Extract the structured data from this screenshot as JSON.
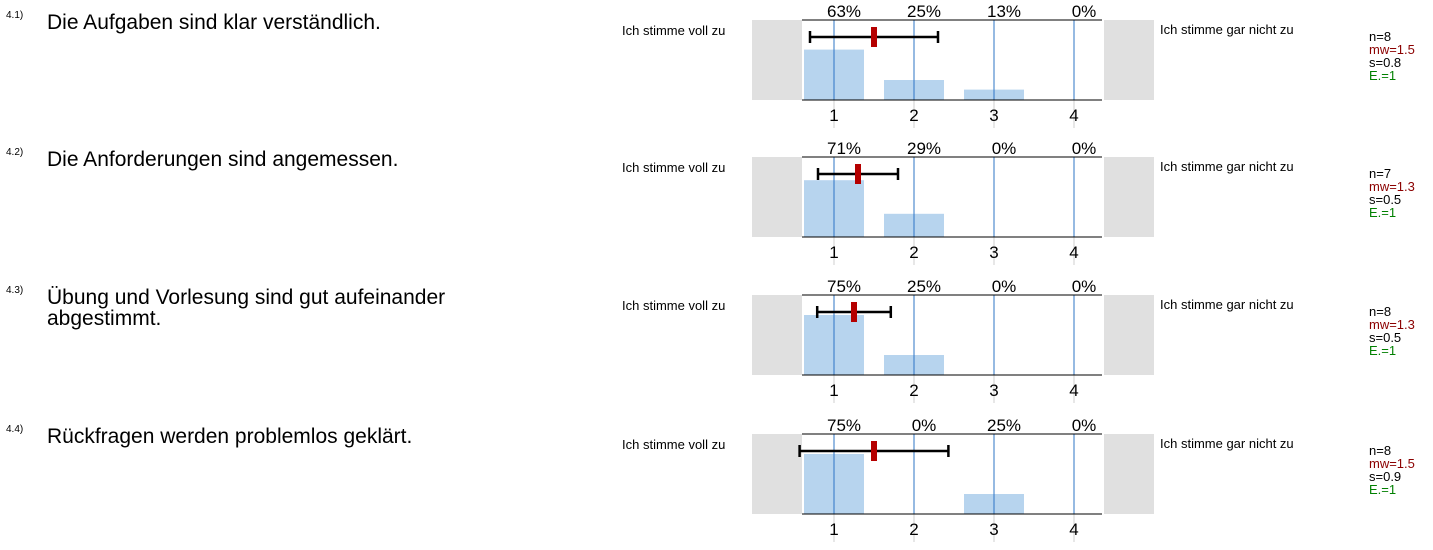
{
  "scale": {
    "left_label": "Ich stimme voll zu",
    "right_label": "Ich stimme gar nicht zu"
  },
  "colors": {
    "bar": "#b7d4ee",
    "gridline": "#2e75c6",
    "mean": "#b50000",
    "mw": "#8b0000",
    "e": "#008000"
  },
  "chart_data": [
    {
      "type": "bar",
      "id": "4.1)",
      "title": "Die Aufgaben sind klar verständlich.",
      "categories": [
        "1",
        "2",
        "3",
        "4"
      ],
      "percent_labels": [
        "63%",
        "25%",
        "13%",
        "0%"
      ],
      "values": [
        63,
        25,
        13,
        0
      ],
      "n": "n=8",
      "mw": "mw=1.5",
      "s": "s=0.8",
      "e": "E.=1",
      "mean": 1.5,
      "sd": 0.8,
      "xlim": [
        1,
        4
      ]
    },
    {
      "type": "bar",
      "id": "4.2)",
      "title": "Die Anforderungen sind angemessen.",
      "categories": [
        "1",
        "2",
        "3",
        "4"
      ],
      "percent_labels": [
        "71%",
        "29%",
        "0%",
        "0%"
      ],
      "values": [
        71,
        29,
        0,
        0
      ],
      "n": "n=7",
      "mw": "mw=1.3",
      "s": "s=0.5",
      "e": "E.=1",
      "mean": 1.3,
      "sd": 0.5,
      "xlim": [
        1,
        4
      ]
    },
    {
      "type": "bar",
      "id": "4.3)",
      "title": "Übung und Vorlesung sind gut aufeinander abgestimmt.",
      "categories": [
        "1",
        "2",
        "3",
        "4"
      ],
      "percent_labels": [
        "75%",
        "25%",
        "0%",
        "0%"
      ],
      "values": [
        75,
        25,
        0,
        0
      ],
      "n": "n=8",
      "mw": "mw=1.3",
      "s": "s=0.5",
      "e": "E.=1",
      "mean": 1.25,
      "sd": 0.46,
      "xlim": [
        1,
        4
      ]
    },
    {
      "type": "bar",
      "id": "4.4)",
      "title": "Rückfragen werden problemlos geklärt.",
      "categories": [
        "1",
        "2",
        "3",
        "4"
      ],
      "percent_labels": [
        "75%",
        "0%",
        "25%",
        "0%"
      ],
      "values": [
        75,
        0,
        25,
        0
      ],
      "n": "n=8",
      "mw": "mw=1.5",
      "s": "s=0.9",
      "e": "E.=1",
      "mean": 1.5,
      "sd": 0.93,
      "xlim": [
        1,
        4
      ]
    }
  ]
}
